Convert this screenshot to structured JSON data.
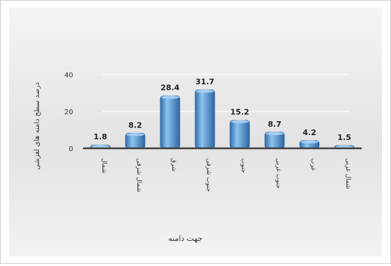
{
  "chart_data": {
    "type": "bar",
    "categories": [
      "شمال",
      "شمال شرقی",
      "شرق",
      "جنوب شرقی",
      "جنوب",
      "جنوب غربی",
      "غرب",
      "شمال غربی"
    ],
    "values": [
      1.8,
      8.2,
      28.4,
      31.7,
      15.2,
      8.7,
      4.2,
      1.5
    ],
    "data_labels": [
      "1.8",
      "8.2",
      "28.4",
      "31.7",
      "15.2",
      "8.7",
      "4.2",
      "1.5"
    ],
    "ylim": [
      0,
      40
    ],
    "yticks": [
      "0",
      "20",
      "40"
    ],
    "ylabel": "درصد سطح دامنه های لغزشی",
    "xlabel": "جهت دامنه",
    "grid": true,
    "legend": "none",
    "bar_color": "#5b9bd5",
    "bar_color_dark": "#2e6ca8",
    "axis_color": "#404040"
  }
}
